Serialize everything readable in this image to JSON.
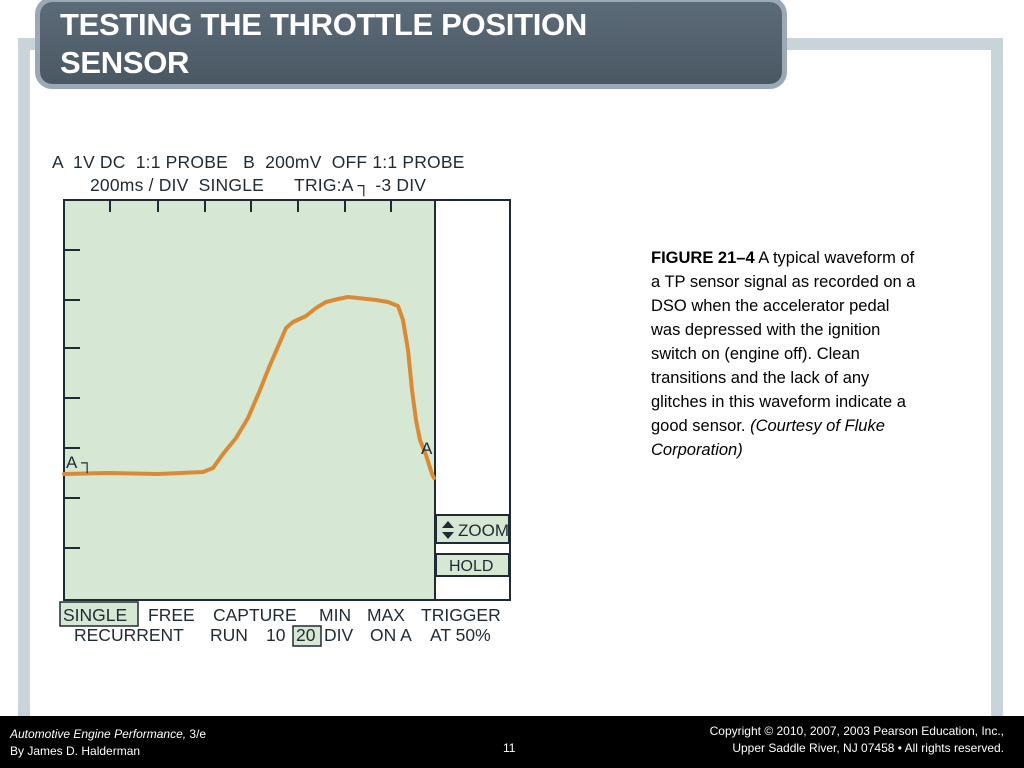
{
  "slide": {
    "title_line1": "TESTING THE THROTTLE POSITION",
    "title_line2": "SENSOR"
  },
  "scope": {
    "header_line1": "A  1V DC  1:1 PROBE   B  200mV  OFF 1:1 PROBE",
    "header_line2": "200ms / DIV  SINGLE      TRIG:A ┐ -3 DIV",
    "trigger_marker": "A ┐",
    "point_label": "A",
    "zoom_label": "ZOOM",
    "hold_label": "HOLD",
    "bottom_row1": [
      "SINGLE",
      "FREE",
      "CAPTURE",
      "MIN",
      "MAX",
      "TRIGGER"
    ],
    "bottom_row2": [
      "RECURRENT",
      "RUN",
      "10",
      "20",
      "DIV",
      "ON A",
      "AT 50%"
    ],
    "colors": {
      "screen": "#d6e8d4",
      "trace": "#d98a35",
      "ink": "#1f2a33"
    }
  },
  "caption": {
    "figure_label": "FIGURE 21–4",
    "text": " A typical waveform of a TP sensor signal as recorded on a DSO when the accelerator pedal was depressed with the ignition switch on (engine off). Clean transitions and the lack of any glitches in this waveform indicate a good sensor. ",
    "credit": "(Courtesy of Fluke Corporation)"
  },
  "footer": {
    "book_title": "Automotive Engine Performance,",
    "edition": " 3/e",
    "author": "By James D. Halderman",
    "page": "11",
    "copyright_line1": "Copyright © 2010, 2007, 2003 Pearson Education, Inc.,",
    "copyright_line2": "Upper Saddle River, NJ 07458 • All rights reserved."
  }
}
